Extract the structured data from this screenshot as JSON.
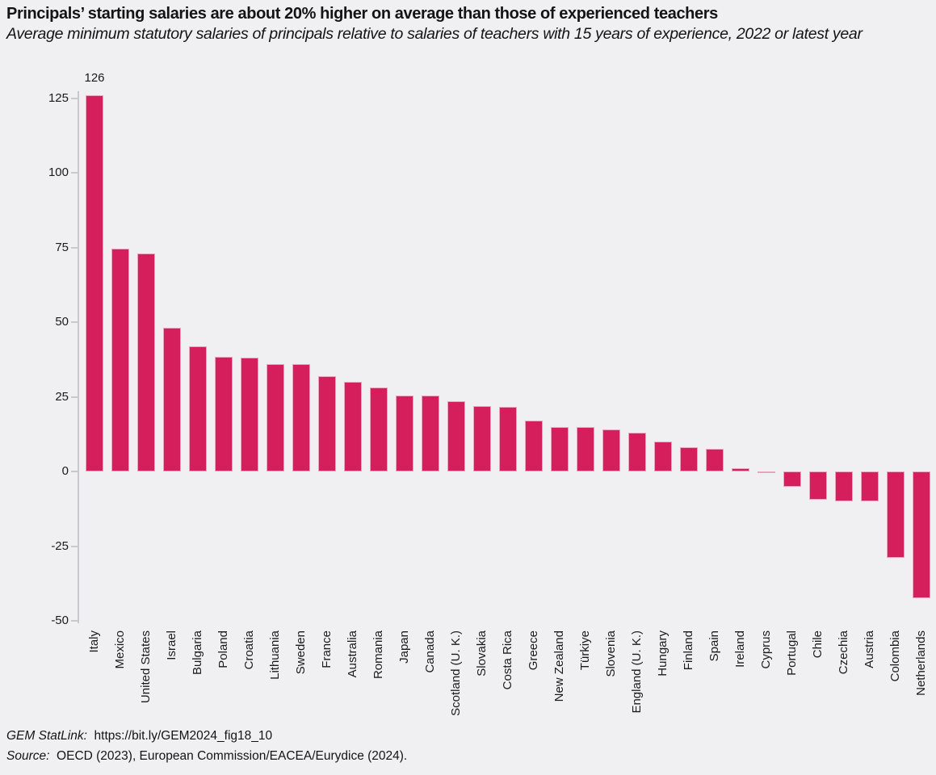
{
  "page": {
    "title": "Principals’ starting salaries are about 20% higher on average than those of experienced teachers",
    "subtitle": "Average minimum statutory salaries of principals relative to salaries of teachers with 15 years of experience, 2022 or latest year",
    "background_color": "#f0eff1"
  },
  "chart_data": {
    "type": "bar",
    "title": "Principals’ starting salaries are about 20% higher on average than those of experienced teachers",
    "subtitle": "Average minimum statutory salaries of principals relative to salaries of teachers with 15 years of experience, 2022 or latest year",
    "categories": [
      "Italy",
      "Mexico",
      "United States",
      "Israel",
      "Bulgaria",
      "Poland",
      "Croatia",
      "Lithuania",
      "Sweden",
      "France",
      "Australia",
      "Romania",
      "Japan",
      "Canada",
      "Scotland (U. K.)",
      "Slovakia",
      "Costa Rica",
      "Greece",
      "New Zealand",
      "Türkiye",
      "Slovenia",
      "England (U. K.)",
      "Hungary",
      "Finland",
      "Spain",
      "Ireland",
      "Cyprus",
      "Portugal",
      "Chile",
      "Czechia",
      "Austria",
      "Colombia",
      "Netherlands"
    ],
    "values": [
      126,
      74.5,
      73,
      48,
      42,
      38.5,
      38,
      36,
      36,
      32,
      30,
      28,
      25.5,
      25.5,
      23.5,
      22,
      21.5,
      17,
      15,
      15,
      14,
      13,
      10,
      8,
      7.5,
      1,
      -0.5,
      -5,
      -9.5,
      -10,
      -10,
      -29,
      -42.5
    ],
    "data_labels": [
      {
        "category": "Italy",
        "text": "126"
      }
    ],
    "xlabel": "",
    "ylabel": "",
    "ylim": [
      -50,
      130
    ],
    "yticks": [
      125,
      100,
      75,
      50,
      25,
      0,
      -25,
      -50
    ],
    "grid": false,
    "legend": "none",
    "bar_color": "#d71e5c",
    "bar_edge_color": "#eda2bb",
    "axis_color": "#c9c8ce"
  },
  "footer": {
    "statlink_label": "GEM StatLink:",
    "statlink_url": "https://bit.ly/GEM2024_fig18_10",
    "source_label": "Source:",
    "source_text": "OECD (2023), European Commission/EACEA/Eurydice (2024)."
  }
}
